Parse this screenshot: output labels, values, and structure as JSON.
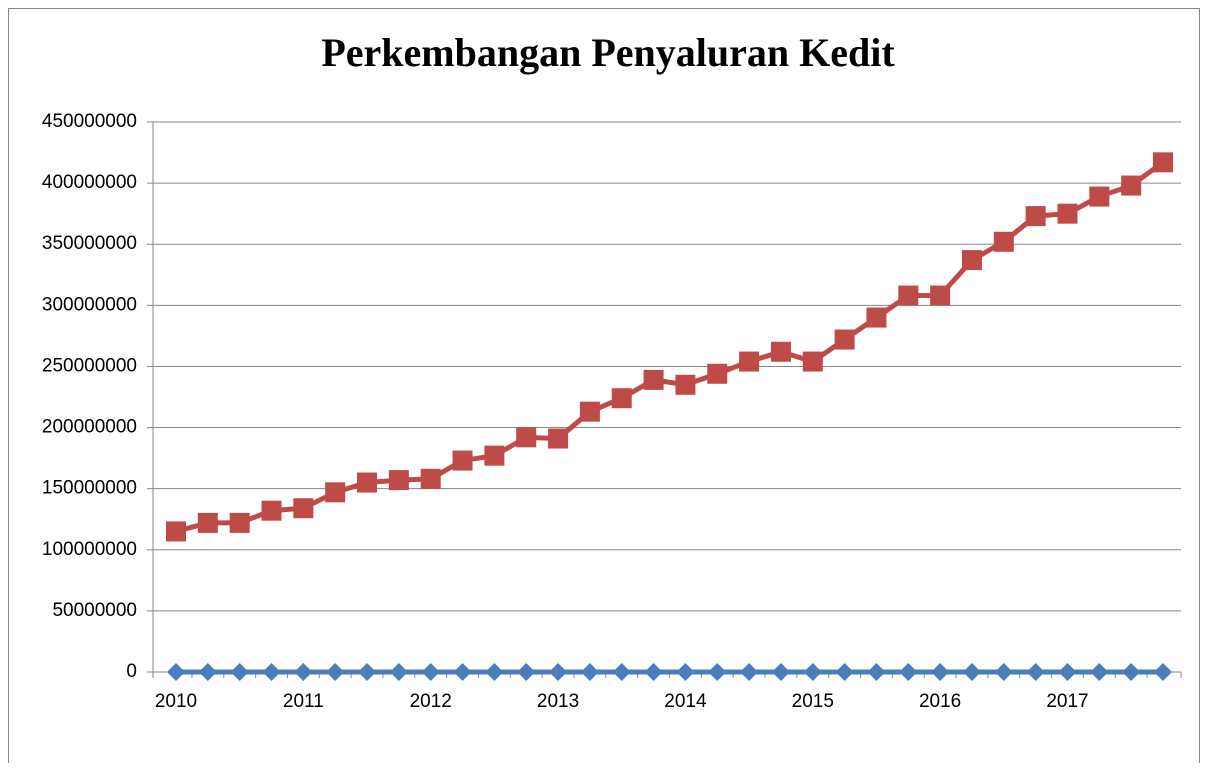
{
  "chart_data": {
    "type": "line",
    "title": "Perkembangan Penyaluran Kedit",
    "categories": [
      "2010",
      null,
      null,
      null,
      "2011",
      null,
      null,
      null,
      "2012",
      null,
      null,
      null,
      "2013",
      null,
      null,
      null,
      "2014",
      null,
      null,
      null,
      "2015",
      null,
      null,
      null,
      "2016",
      null,
      null,
      null,
      "2017",
      null,
      null,
      null
    ],
    "series": [
      {
        "color": "#4a7ebb",
        "marker": "diamond",
        "values": [
          0,
          0,
          0,
          0,
          0,
          0,
          0,
          0,
          0,
          0,
          0,
          0,
          0,
          0,
          0,
          0,
          0,
          0,
          0,
          0,
          0,
          0,
          0,
          0,
          0,
          0,
          0,
          0,
          0,
          0,
          0,
          0
        ]
      },
      {
        "color": "#be4b48",
        "marker": "square",
        "values": [
          115000000,
          122000000,
          122000000,
          132000000,
          134000000,
          147000000,
          155000000,
          157000000,
          158000000,
          173000000,
          177000000,
          192000000,
          191000000,
          213000000,
          224000000,
          239000000,
          235000000,
          244000000,
          254000000,
          262000000,
          254000000,
          272000000,
          290000000,
          308000000,
          308000000,
          337000000,
          352000000,
          373000000,
          375000000,
          389000000,
          398000000,
          417000000
        ]
      }
    ],
    "ylim": [
      0,
      450000000
    ],
    "yticks": [
      0,
      50000000,
      100000000,
      150000000,
      200000000,
      250000000,
      300000000,
      350000000,
      400000000,
      450000000
    ],
    "grid": true
  }
}
